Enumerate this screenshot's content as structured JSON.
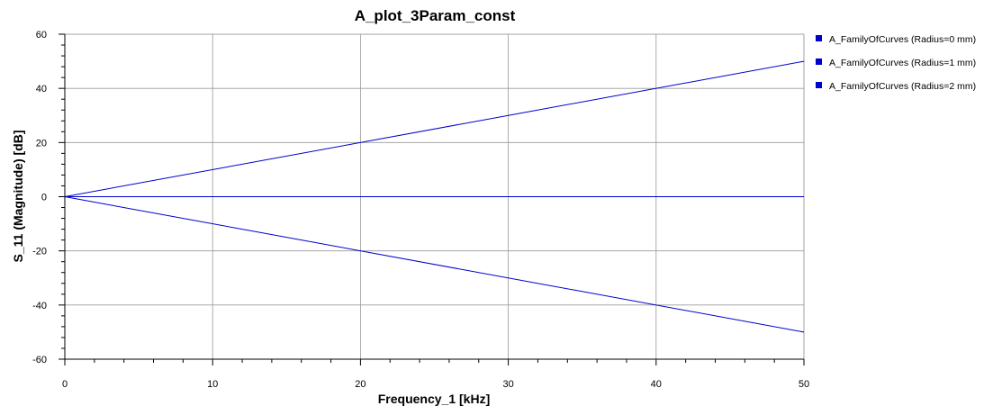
{
  "chart_data": {
    "type": "line",
    "title": "A_plot_3Param_const",
    "xlabel": "Frequency_1 [kHz]",
    "ylabel": "S_11 (Magnitude) [dB]",
    "xlim": [
      0,
      50
    ],
    "ylim": [
      -60,
      60
    ],
    "x_ticks": [
      0,
      10,
      20,
      30,
      40,
      50
    ],
    "y_ticks": [
      -60,
      -40,
      -20,
      0,
      20,
      40,
      60
    ],
    "x_tick_labels": [
      "0",
      "10",
      "20",
      "30",
      "40",
      "50"
    ],
    "y_tick_labels": [
      "-60",
      "-40",
      "-20",
      "0",
      "20",
      "40",
      "60"
    ],
    "grid": true,
    "legend_position": "top-right-outside",
    "series": [
      {
        "name": "A_FamilyOfCurves (Radius=0 mm)",
        "color": "#0000cc",
        "x": [
          0,
          50
        ],
        "y": [
          0,
          0
        ]
      },
      {
        "name": "A_FamilyOfCurves (Radius=1 mm)",
        "color": "#0000cc",
        "x": [
          0,
          50
        ],
        "y": [
          0,
          50
        ]
      },
      {
        "name": "A_FamilyOfCurves (Radius=2 mm)",
        "color": "#0000cc",
        "x": [
          0,
          50
        ],
        "y": [
          0,
          -50
        ]
      }
    ]
  }
}
